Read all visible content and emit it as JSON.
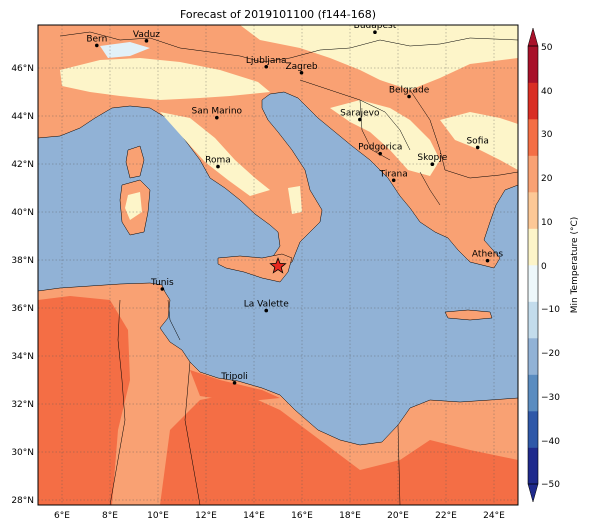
{
  "title": "Forecast of 2019101100 (f144-168)",
  "map": {
    "lon_range": [
      5,
      25
    ],
    "lat_range": [
      27.8,
      47.8
    ],
    "lon_ticks": [
      "6°E",
      "8°E",
      "10°E",
      "12°E",
      "14°E",
      "16°E",
      "18°E",
      "20°E",
      "22°E",
      "24°E"
    ],
    "lat_ticks": [
      "28°N",
      "30°N",
      "32°N",
      "34°N",
      "36°N",
      "38°N",
      "40°N",
      "42°N",
      "44°N",
      "46°N"
    ],
    "gridlines": true,
    "cities": [
      {
        "name": "Bern",
        "lon": 7.45,
        "lat": 46.95
      },
      {
        "name": "Vaduz",
        "lon": 9.52,
        "lat": 47.14
      },
      {
        "name": "Budapest",
        "lon": 19.04,
        "lat": 47.5
      },
      {
        "name": "Ljubljana",
        "lon": 14.51,
        "lat": 46.06
      },
      {
        "name": "Zagreb",
        "lon": 15.98,
        "lat": 45.81
      },
      {
        "name": "Belgrade",
        "lon": 20.46,
        "lat": 44.82
      },
      {
        "name": "San Marino",
        "lon": 12.45,
        "lat": 43.94
      },
      {
        "name": "Sarajevo",
        "lon": 18.41,
        "lat": 43.86
      },
      {
        "name": "Sofia",
        "lon": 23.32,
        "lat": 42.7
      },
      {
        "name": "Podgorica",
        "lon": 19.26,
        "lat": 42.44
      },
      {
        "name": "Skopje",
        "lon": 21.43,
        "lat": 42.0
      },
      {
        "name": "Roma",
        "lon": 12.5,
        "lat": 41.9
      },
      {
        "name": "Tirana",
        "lon": 19.82,
        "lat": 41.33
      },
      {
        "name": "Athens",
        "lon": 23.73,
        "lat": 37.98
      },
      {
        "name": "Tunis",
        "lon": 10.18,
        "lat": 36.8
      },
      {
        "name": "La Valette",
        "lon": 14.51,
        "lat": 35.9
      },
      {
        "name": "Tripoli",
        "lon": 13.19,
        "lat": 32.89
      }
    ],
    "marker": {
      "lon": 15.0,
      "lat": 37.75,
      "color": "#e8281f"
    },
    "fill_colors": {
      "sea": "#91b2d6",
      "warm_land": "#f9a173",
      "hot_land": "#f46e45",
      "mild_land": "#fdf5c9",
      "cool_land": "#e2f1f8",
      "border": "#000000"
    }
  },
  "colorbar": {
    "label": "Min Temperature (°C)",
    "ticks": [
      "50",
      "40",
      "30",
      "20",
      "10",
      "0",
      "−10",
      "−20",
      "−30",
      "−40",
      "−50"
    ],
    "min": -50,
    "max": 50,
    "colors_low_to_high": [
      "#1f2a8c",
      "#2f58a8",
      "#5a8cc0",
      "#91b2d6",
      "#c3dcec",
      "#eef8fb",
      "#fdf5c9",
      "#fdc896",
      "#f9a173",
      "#f46e45",
      "#d92e24",
      "#a8112a"
    ]
  }
}
